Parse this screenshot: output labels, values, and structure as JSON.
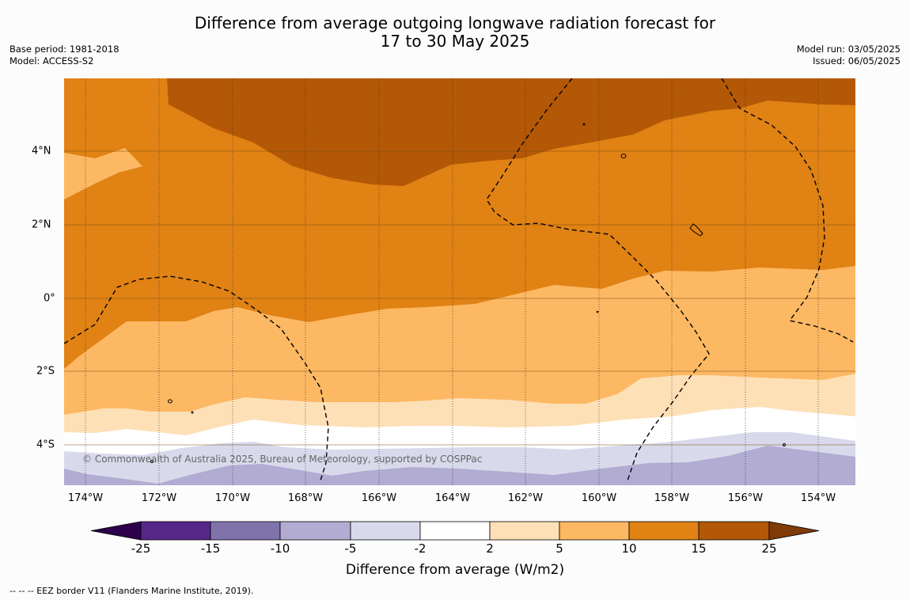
{
  "title": {
    "line1": "Difference from average outgoing longwave radiation forecast for",
    "line2": "17 to 30 May 2025"
  },
  "meta_left": {
    "base_period": "Base period: 1981-2018",
    "model": "Model: ACCESS-S2"
  },
  "meta_right": {
    "model_run": "Model run: 03/05/2025",
    "issued": "Issued: 06/05/2025"
  },
  "map": {
    "latitude_labels": [
      "4°N",
      "2°N",
      "0°",
      "2°S",
      "4°S"
    ],
    "longitude_labels": [
      "174°W",
      "172°W",
      "170°W",
      "168°W",
      "166°W",
      "164°W",
      "162°W",
      "160°W",
      "158°W",
      "156°W",
      "154°W"
    ],
    "copyright": "© Commonwealth of Australia 2025, Bureau of Meteorology, supported by COSPPac"
  },
  "colorbar": {
    "ticks": [
      "-25",
      "-15",
      "-10",
      "-5",
      "-2",
      "2",
      "5",
      "10",
      "15",
      "25"
    ],
    "colors": {
      "below_-25": "#2d004b",
      "-25_-15": "#542788",
      "-15_-10": "#8073ac",
      "-10_-5": "#b2abd2",
      "-5_-2": "#d8daeb",
      "-2_2": "#ffffff",
      "2_5": "#fee0b6",
      "5_10": "#fdb863",
      "10_15": "#e08214",
      "15_25": "#b35806",
      "above_25": "#7f3b08"
    },
    "label": "Difference from average (W/m2)"
  },
  "footer": {
    "legend": "--  --  -- EEZ border V11 (Flanders Marine Institute, 2019)."
  }
}
